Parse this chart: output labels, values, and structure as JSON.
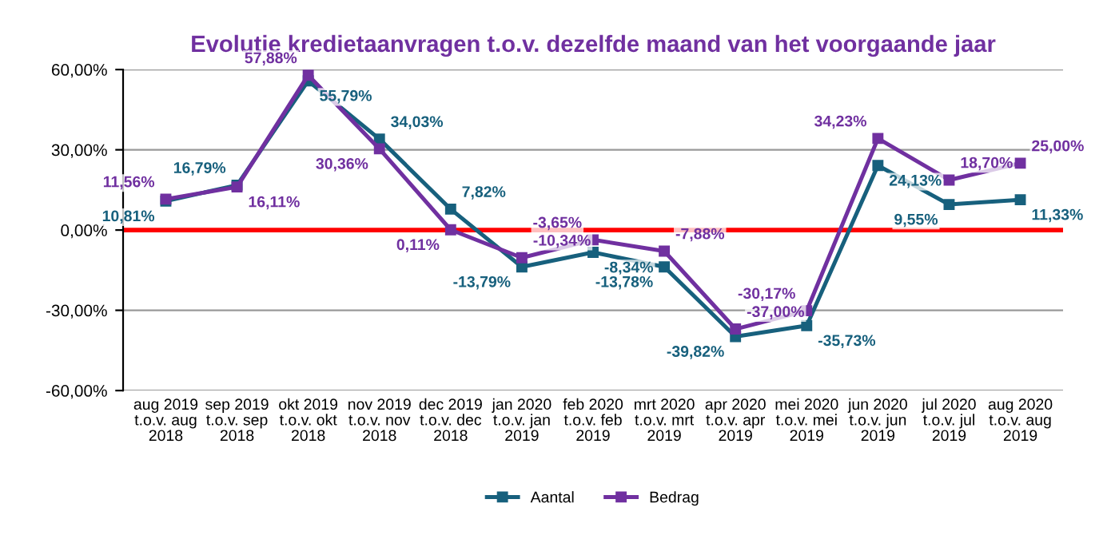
{
  "chart_data": {
    "type": "line",
    "title": "Evolutie kredietaanvragen t.o.v. dezelfde maand van het voorgaande jaar",
    "categories": [
      "aug 2019\nt.o.v. aug\n2018",
      "sep 2019\nt.o.v. sep\n2018",
      "okt 2019\nt.o.v. okt\n2018",
      "nov 2019\nt.o.v. nov\n2018",
      "dec 2019\nt.o.v. dec\n2018",
      "jan 2020\nt.o.v. jan\n2019",
      "feb 2020\nt.o.v. feb\n2019",
      "mrt 2020\nt.o.v. mrt\n2019",
      "apr 2020\nt.o.v. apr\n2019",
      "mei 2020\nt.o.v. mei\n2019",
      "jun 2020\nt.o.v. jun\n2019",
      "jul 2020\nt.o.v. jul\n2019",
      "aug 2020\nt.o.v. aug\n2019"
    ],
    "series": [
      {
        "name": "Aantal",
        "color": "#17607d",
        "values": [
          10.81,
          16.79,
          55.79,
          34.03,
          7.82,
          -13.79,
          -8.34,
          -13.78,
          -39.82,
          -35.73,
          24.13,
          9.55,
          11.33
        ],
        "value_labels": [
          "10,81%",
          "16,79%",
          "55,79%",
          "34,03%",
          "7,82%",
          "-13,79%",
          "-8,34%",
          "-13,78%",
          "-39,82%",
          "-35,73%",
          "24,13%",
          "9,55%",
          "11,33%"
        ]
      },
      {
        "name": "Bedrag",
        "color": "#7030a0",
        "values": [
          11.56,
          16.11,
          57.88,
          30.36,
          0.11,
          -10.34,
          -3.65,
          -7.88,
          -37.0,
          -30.17,
          34.23,
          18.7,
          25.0
        ],
        "value_labels": [
          "11,56%",
          "16,11%",
          "57,88%",
          "30,36%",
          "0,11%",
          "-10,34%",
          "-3,65%",
          "-7,88%",
          "-37,00%",
          "-30,17%",
          "34,23%",
          "18,70%",
          "25,00%"
        ]
      }
    ],
    "ylim": [
      -60,
      60
    ],
    "yticks": [
      {
        "value": -60,
        "label": "-60,00%"
      },
      {
        "value": -30,
        "label": "-30,00%"
      },
      {
        "value": 0,
        "label": "0,00%"
      },
      {
        "value": 30,
        "label": "30,00%"
      },
      {
        "value": 60,
        "label": "60,00%"
      }
    ],
    "ref_lines": [
      {
        "axis": "y",
        "value": 0,
        "color": "#ff0000"
      }
    ],
    "grid": "y",
    "legend": "bottom",
    "marker": "square",
    "line_style": "solid"
  }
}
